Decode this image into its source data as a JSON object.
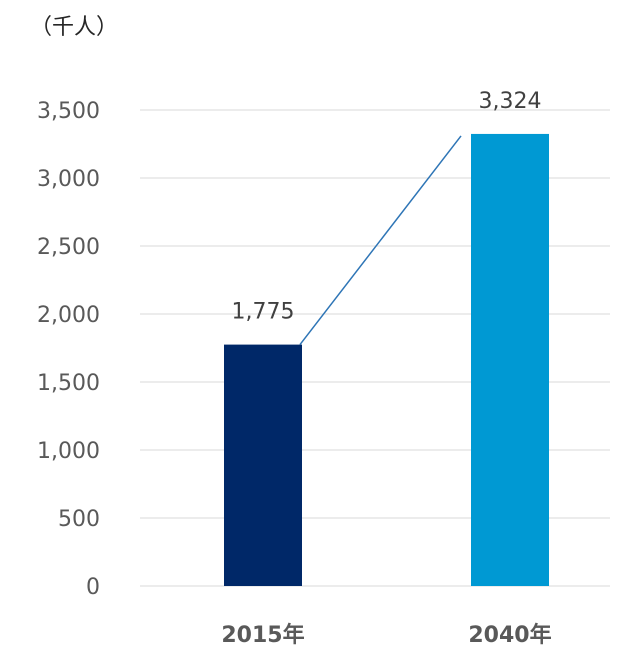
{
  "chart_data": {
    "type": "bar",
    "unit_label": "（千人）",
    "categories": [
      "2015年",
      "2040年"
    ],
    "values": [
      1775,
      3324
    ],
    "value_labels": [
      "1,775",
      "3,324"
    ],
    "bar_colors": [
      "#002868",
      "#0099d3"
    ],
    "connector_color": "#2e75b6",
    "y_ticks": [
      0,
      500,
      1000,
      1500,
      2000,
      2500,
      3000,
      3500
    ],
    "y_tick_labels": [
      "0",
      "500",
      "1,000",
      "1,500",
      "2,000",
      "2,500",
      "3,000",
      "3,500"
    ],
    "ylim": [
      0,
      3500
    ],
    "grid": true,
    "legend": "none",
    "connector_line": true
  }
}
